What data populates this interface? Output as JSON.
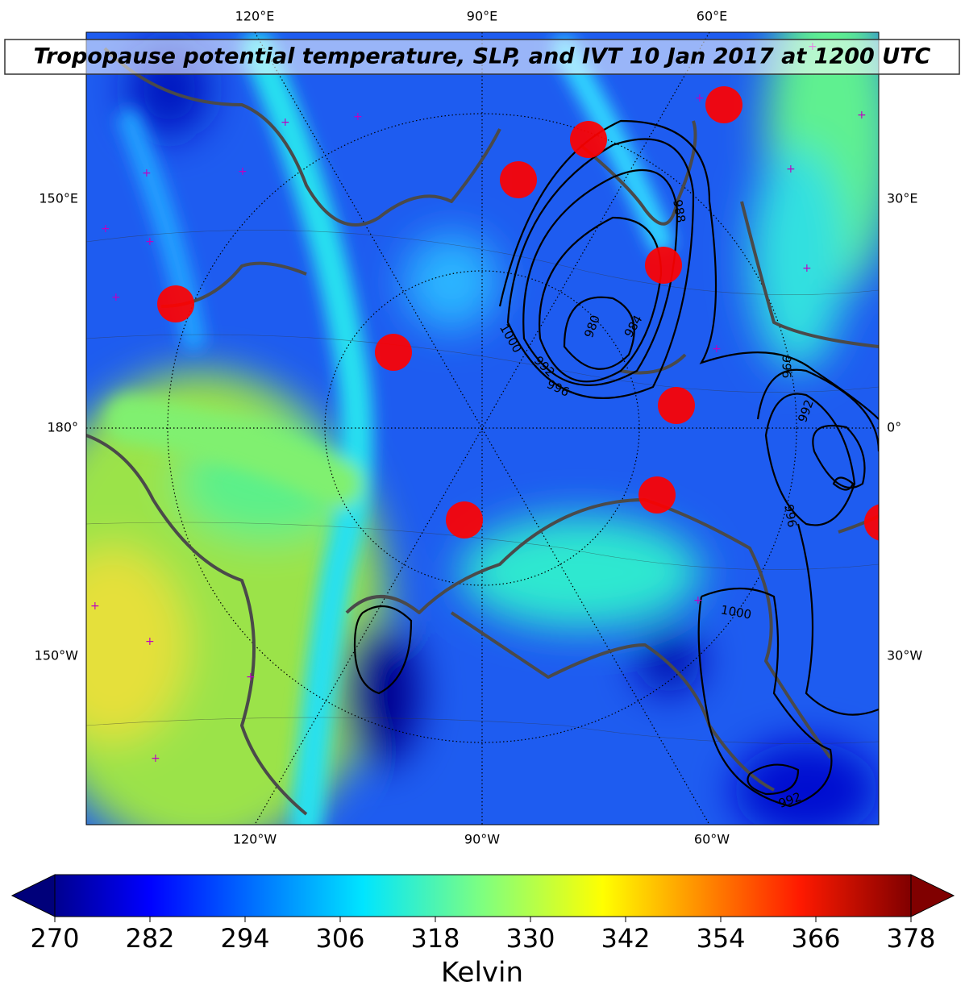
{
  "title": "Tropopause potential temperature, SLP, and IVT 10 Jan 2017 at 1200 UTC",
  "map": {
    "lon_labels_top": [
      "120°E",
      "90°E",
      "60°E"
    ],
    "lon_labels_left": [
      "150°E",
      "180°",
      "150°W"
    ],
    "lon_labels_right": [
      "30°E",
      "0°",
      "30°W"
    ],
    "lon_labels_bottom": [
      "120°W",
      "90°W",
      "60°W"
    ],
    "contour_labels": [
      "988",
      "980",
      "984",
      "1000",
      "992",
      "996",
      "996",
      "992",
      "996",
      "1000",
      "992"
    ]
  },
  "colorbar": {
    "ticks": [
      270,
      282,
      294,
      306,
      318,
      330,
      342,
      354,
      366,
      378
    ],
    "label": "Kelvin"
  }
}
